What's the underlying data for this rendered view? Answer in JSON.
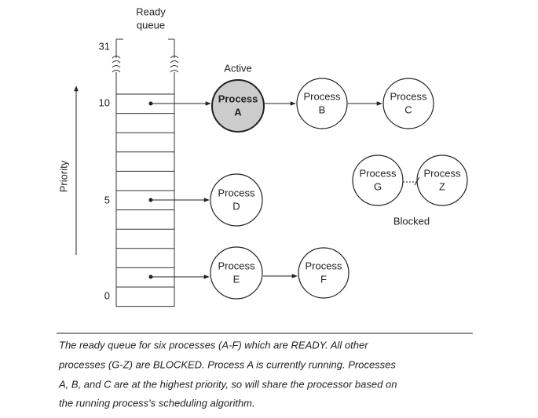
{
  "queue": {
    "title": [
      "Ready",
      "queue"
    ],
    "levels": [
      "31",
      "10",
      "5",
      "0"
    ],
    "axis_label": "Priority"
  },
  "nodes": [
    {
      "label": [
        "Process",
        "A"
      ]
    },
    {
      "label": [
        "Process",
        "B"
      ]
    },
    {
      "label": [
        "Process",
        "C"
      ]
    },
    {
      "label": [
        "Process",
        "D"
      ]
    },
    {
      "label": [
        "Process",
        "E"
      ]
    },
    {
      "label": [
        "Process",
        "F"
      ]
    },
    {
      "label": [
        "Process",
        "G"
      ]
    },
    {
      "label": [
        "Process",
        "Z"
      ]
    }
  ],
  "labels": {
    "active": "Active",
    "blocked": "Blocked"
  },
  "caption": [
    "The ready queue for six processes (A-F) which are READY. All other",
    "processes (G-Z) are BLOCKED. Process A is currently running. Processes",
    "A, B, and C are at the highest priority, so will share the processor based on",
    "the running process's scheduling algorithm."
  ]
}
